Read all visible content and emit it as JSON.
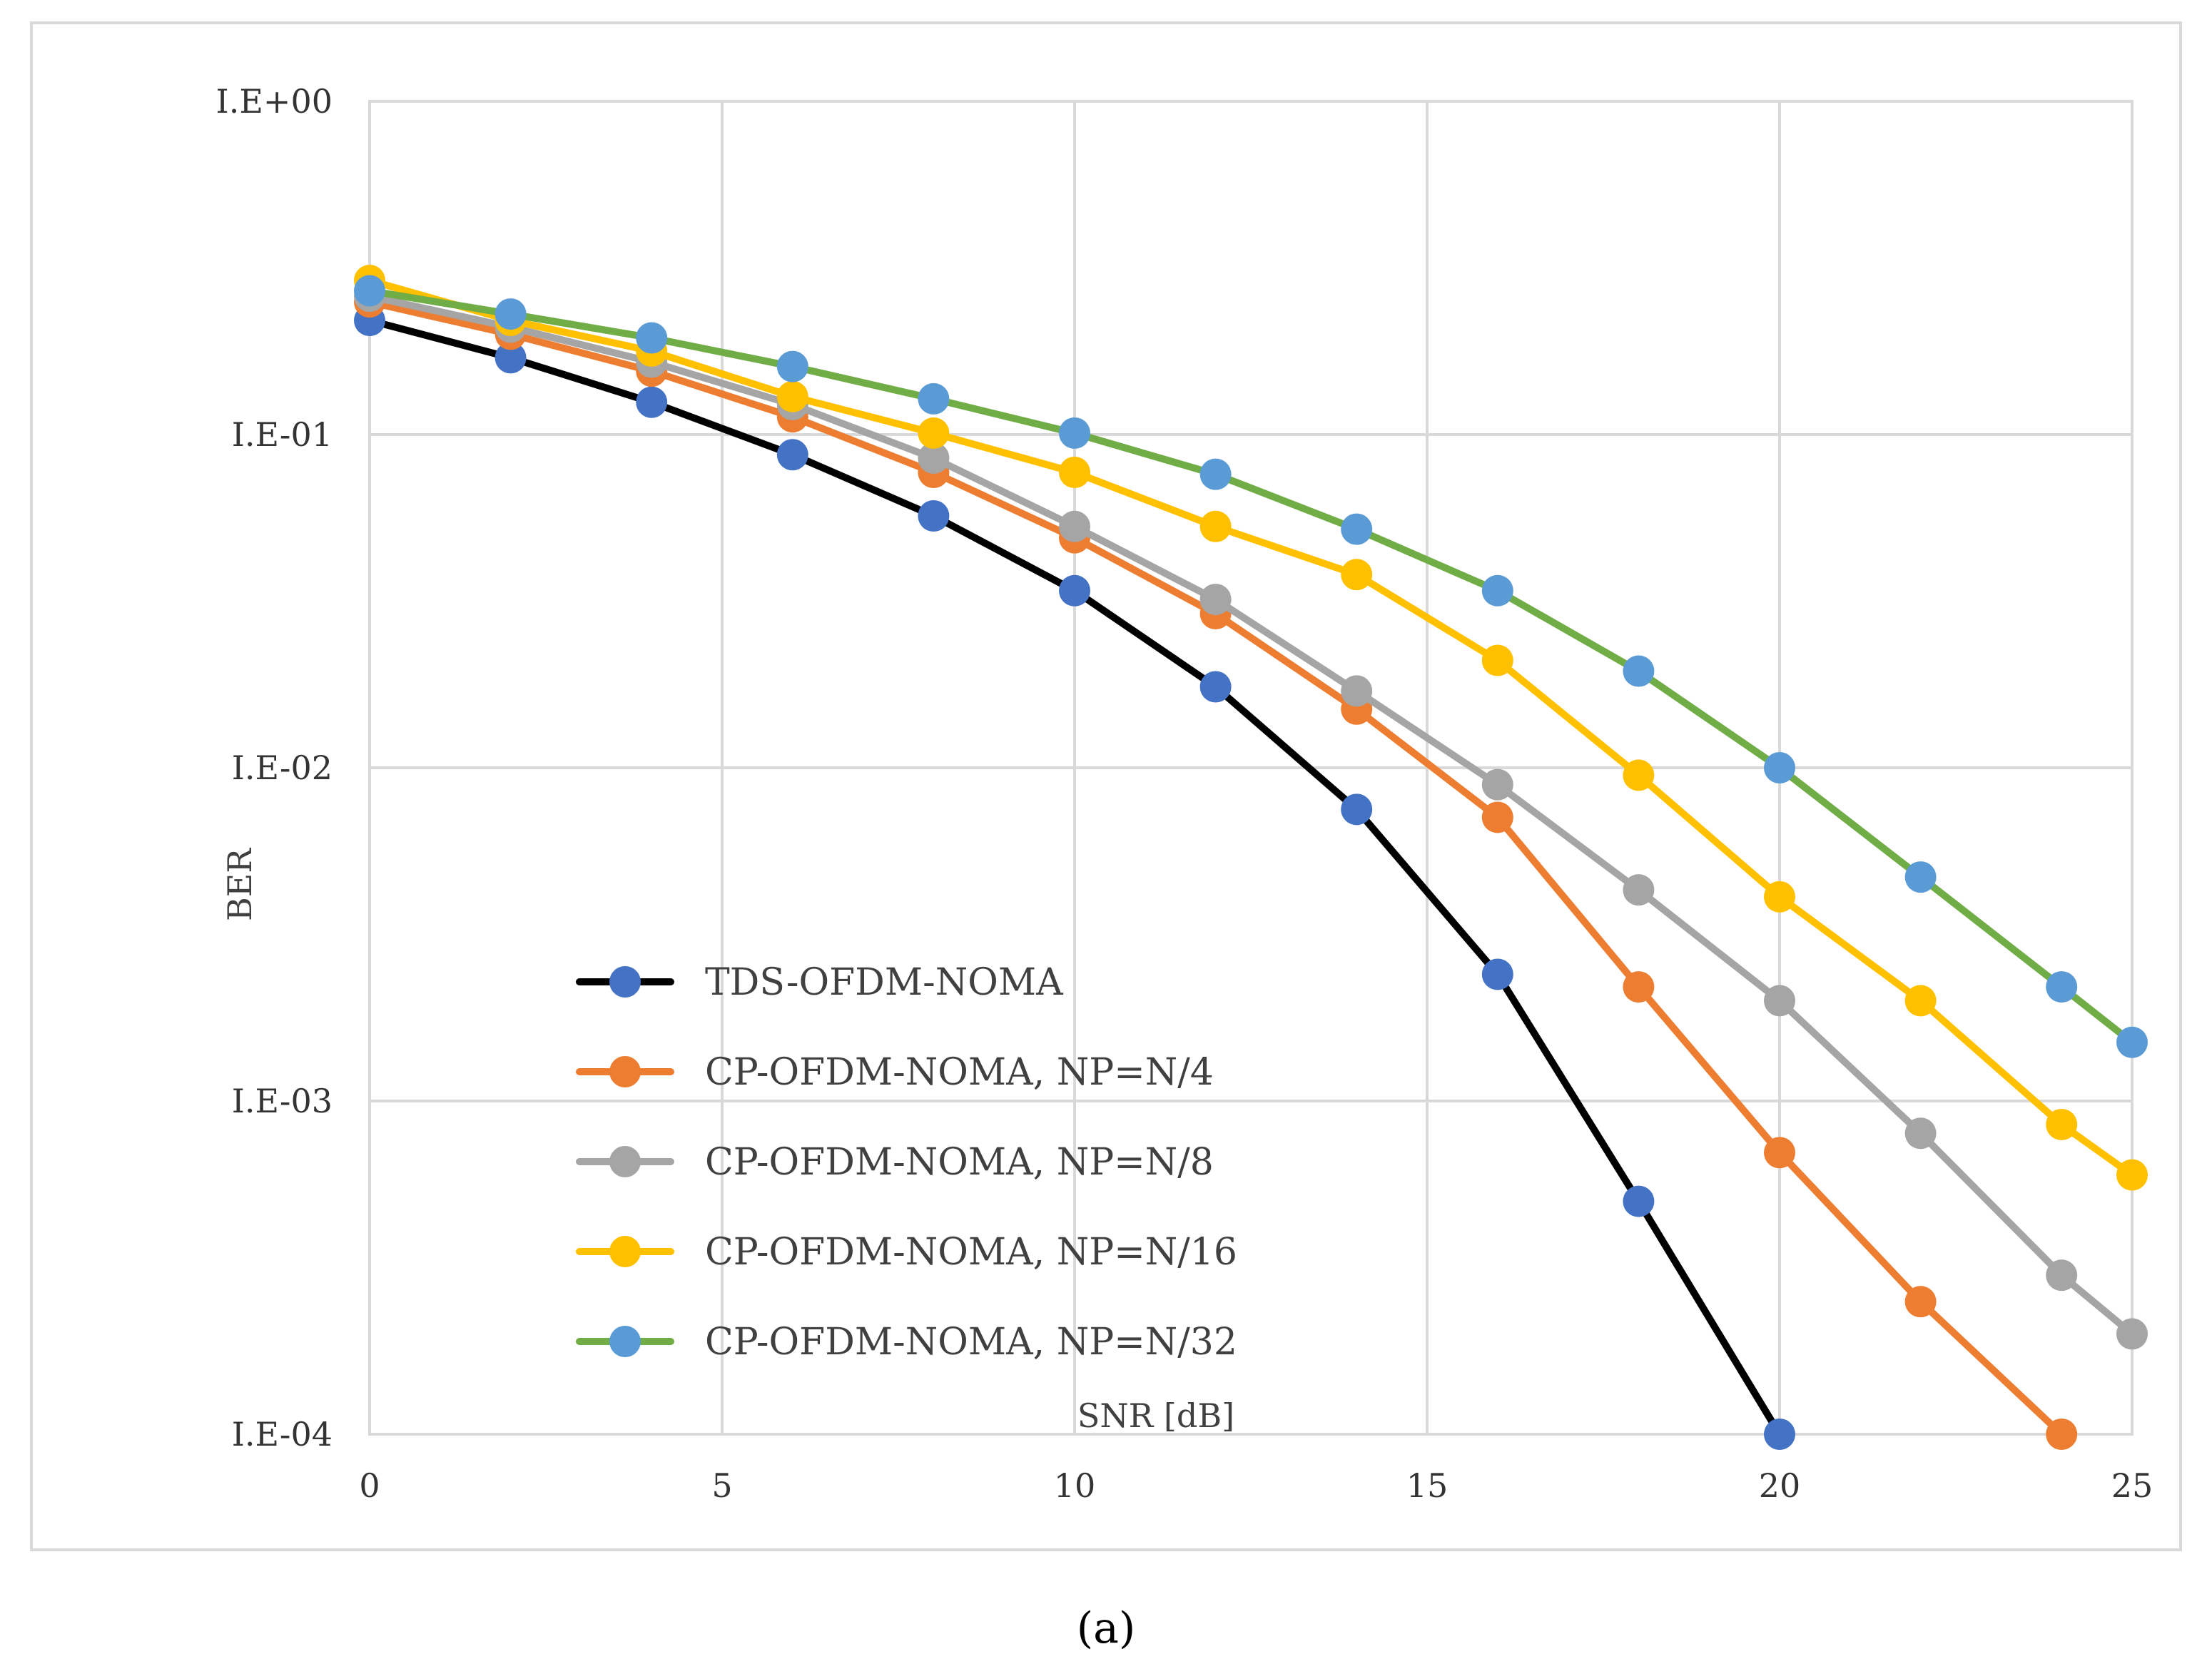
{
  "chart_data": {
    "type": "line",
    "title": "",
    "xlabel": "SNR [dB]",
    "ylabel": "BER",
    "yscale": "log",
    "xlim": [
      0,
      25
    ],
    "ylim": [
      0.0001,
      1
    ],
    "x_ticks": [
      "0",
      "5",
      "10",
      "15",
      "20",
      "25"
    ],
    "x_tick_values": [
      0,
      5,
      10,
      15,
      20,
      25
    ],
    "y_ticks": [
      "I.E+00",
      "I.E-01",
      "I.E-02",
      "I.E-03",
      "I.E-04"
    ],
    "y_tick_values": [
      1,
      0.1,
      0.01,
      0.001,
      0.0001
    ],
    "grid": true,
    "legend_position": "lower-left",
    "caption": "(a)",
    "series": [
      {
        "name": "TDS-OFDM-NOMA",
        "line_color": "#000000",
        "marker_color": "#4472C4",
        "x": [
          0,
          2,
          4,
          6,
          8,
          10,
          12,
          14,
          16,
          18,
          20
        ],
        "y": [
          0.22,
          0.17,
          0.125,
          0.087,
          0.057,
          0.034,
          0.0175,
          0.0075,
          0.0024,
          0.0005,
          0.0001
        ]
      },
      {
        "name": "CP-OFDM-NOMA, NP=N/4",
        "line_color": "#ED7D31",
        "marker_color": "#ED7D31",
        "x": [
          0,
          2,
          4,
          6,
          8,
          10,
          12,
          14,
          16,
          18,
          20,
          22,
          24
        ],
        "y": [
          0.25,
          0.2,
          0.155,
          0.113,
          0.077,
          0.049,
          0.029,
          0.015,
          0.0071,
          0.0022,
          0.0007,
          0.00025,
          0.0001
        ]
      },
      {
        "name": "CP-OFDM-NOMA, NP=N/8",
        "line_color": "#A5A5A5",
        "marker_color": "#A5A5A5",
        "x": [
          0,
          2,
          4,
          6,
          8,
          10,
          12,
          14,
          16,
          18,
          20,
          22,
          24,
          25
        ],
        "y": [
          0.26,
          0.21,
          0.165,
          0.123,
          0.085,
          0.053,
          0.032,
          0.017,
          0.0089,
          0.0043,
          0.002,
          0.0008,
          0.0003,
          0.0002
        ]
      },
      {
        "name": "CP-OFDM-NOMA, NP=N/16",
        "line_color": "#FFC000",
        "marker_color": "#FFC000",
        "x": [
          0,
          2,
          4,
          6,
          8,
          10,
          12,
          14,
          16,
          18,
          20,
          22,
          24,
          25
        ],
        "y": [
          0.29,
          0.22,
          0.178,
          0.13,
          0.101,
          0.077,
          0.053,
          0.038,
          0.021,
          0.0095,
          0.0041,
          0.002,
          0.00085,
          0.0006
        ]
      },
      {
        "name": "CP-OFDM-NOMA, NP=N/32",
        "line_color": "#70AD47",
        "marker_color": "#5B9BD5",
        "x": [
          0,
          2,
          4,
          6,
          8,
          10,
          12,
          14,
          16,
          18,
          20,
          22,
          24,
          25
        ],
        "y": [
          0.27,
          0.23,
          0.195,
          0.16,
          0.128,
          0.101,
          0.076,
          0.052,
          0.034,
          0.0195,
          0.01,
          0.0047,
          0.0022,
          0.0015
        ]
      }
    ]
  }
}
